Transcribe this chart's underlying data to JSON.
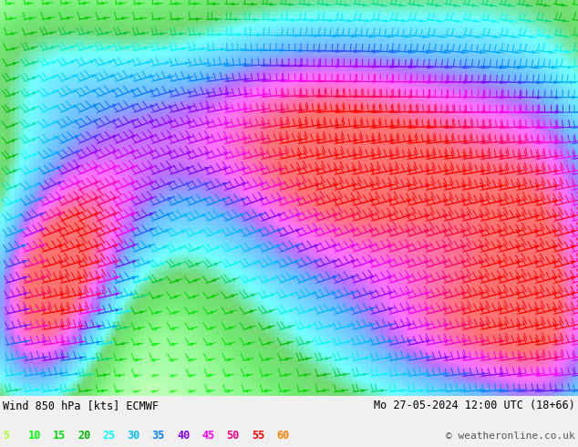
{
  "title_left": "Wind 850 hPa [kts] ECMWF",
  "title_right": "Mo 27-05-2024 12:00 UTC (18+66)",
  "copyright": "© weatheronline.co.uk",
  "legend_values": [
    5,
    10,
    15,
    20,
    25,
    30,
    35,
    40,
    45,
    50,
    55,
    60
  ],
  "legend_colors": [
    "#adff2f",
    "#00ff00",
    "#00dd00",
    "#00bb00",
    "#00ffff",
    "#00bfff",
    "#0080ff",
    "#8000ff",
    "#ff00ff",
    "#ff0080",
    "#ff0000",
    "#ff8000"
  ],
  "bg_color": "#f0f0f0",
  "fig_width": 6.34,
  "fig_height": 4.9,
  "dpi": 100
}
